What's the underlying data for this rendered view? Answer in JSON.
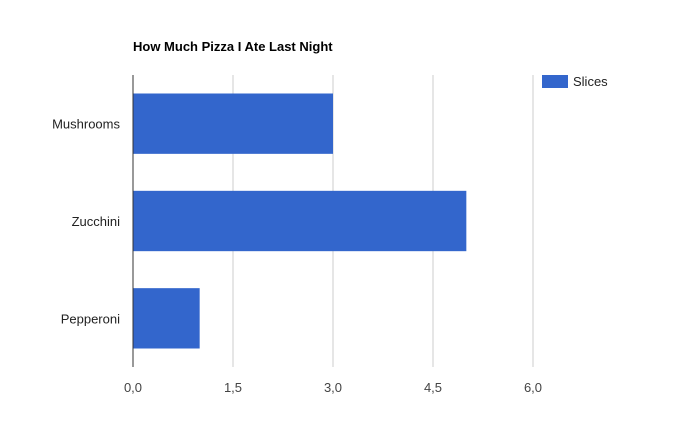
{
  "chart_data": {
    "type": "bar",
    "orientation": "horizontal",
    "title": "How Much Pizza I Ate Last Night",
    "categories": [
      "Mushrooms",
      "Zucchini",
      "Pepperoni"
    ],
    "series": [
      {
        "name": "Slices",
        "values": [
          3,
          5,
          1
        ],
        "color": "#3366cc"
      }
    ],
    "xlim": [
      0,
      6.75
    ],
    "xticks": [
      0,
      1.5,
      3,
      4.5,
      6
    ],
    "xtick_labels": [
      "0,0",
      "1,5",
      "3,0",
      "4,5",
      "6,0"
    ],
    "grid": true,
    "legend": "top-right"
  }
}
